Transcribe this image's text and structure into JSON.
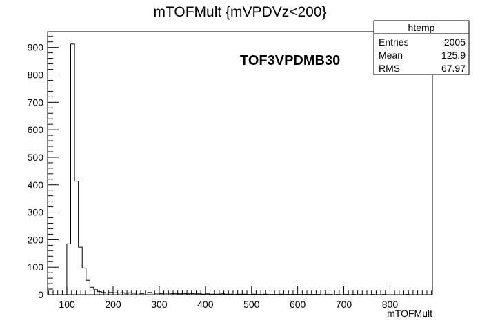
{
  "chart_data": {
    "type": "bar",
    "title": "mTOFMult {mVPDVz<200}",
    "xlabel": "mTOFMult",
    "ylabel": "",
    "annotation": "TOF3VPDMB30",
    "xlim": [
      58,
      892
    ],
    "ylim": [
      0,
      957
    ],
    "xticks": [
      100,
      200,
      300,
      400,
      500,
      600,
      700,
      800
    ],
    "yticks": [
      0,
      100,
      200,
      300,
      400,
      500,
      600,
      700,
      800,
      900
    ],
    "bin_width": 8.34,
    "bin_edges_start": 58,
    "values": [
      0,
      0,
      0,
      0,
      0,
      185,
      912,
      413,
      173,
      97,
      52,
      27,
      18,
      11,
      8,
      6,
      8,
      7,
      6,
      7,
      5,
      7,
      5,
      6,
      4,
      6,
      8,
      6,
      5,
      4,
      5,
      5,
      4,
      4,
      3,
      4,
      3,
      4,
      3,
      3,
      2,
      3,
      2,
      2,
      2,
      3,
      2,
      2,
      1,
      2,
      2,
      2,
      1,
      2,
      1,
      1,
      2,
      1,
      1,
      1,
      2,
      1,
      1,
      1,
      1,
      1,
      1,
      1,
      1,
      1,
      1,
      0,
      1,
      1,
      0,
      1,
      0,
      1,
      0,
      1,
      0,
      1,
      0,
      0,
      1,
      0,
      0,
      1,
      0,
      0,
      0,
      0,
      0,
      1,
      0,
      0,
      0,
      0,
      0,
      0
    ],
    "stats": {
      "name": "htemp",
      "rows": [
        {
          "label": "Entries",
          "value": "2005"
        },
        {
          "label": "Mean",
          "value": "125.9"
        },
        {
          "label": "RMS",
          "value": "67.97"
        }
      ]
    }
  }
}
